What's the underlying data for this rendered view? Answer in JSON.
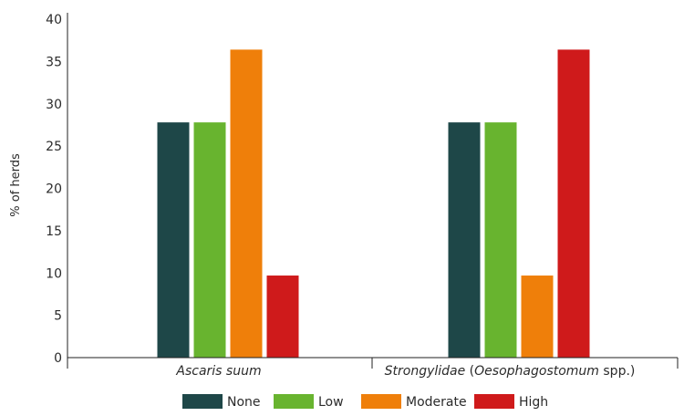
{
  "chart_data": {
    "type": "bar",
    "ylabel": "% of herds",
    "ylim": [
      0,
      40
    ],
    "yticks": [
      0,
      5,
      10,
      15,
      20,
      25,
      30,
      35,
      40
    ],
    "grid": false,
    "legend_position": "bottom-center",
    "categories": [
      {
        "parts": [
          {
            "text": "Ascaris suum",
            "italic": true
          }
        ]
      },
      {
        "parts": [
          {
            "text": "Strongylidae",
            "italic": true
          },
          {
            "text": " (",
            "italic": false
          },
          {
            "text": "Oesophagostomum",
            "italic": true
          },
          {
            "text": " spp.)",
            "italic": false
          }
        ]
      }
    ],
    "series": [
      {
        "name": "None",
        "color": "#1e4748",
        "values": [
          27.8,
          27.8
        ]
      },
      {
        "name": "Low",
        "color": "#68b42f",
        "values": [
          27.8,
          27.8
        ]
      },
      {
        "name": "Moderate",
        "color": "#ef7f0a",
        "values": [
          36.4,
          9.7
        ]
      },
      {
        "name": "High",
        "color": "#cf1a1b",
        "values": [
          9.7,
          36.4
        ]
      }
    ]
  }
}
